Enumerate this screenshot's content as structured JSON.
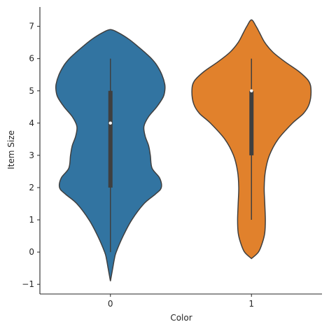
{
  "chart_data": {
    "type": "violin",
    "title": "",
    "xlabel": "Color",
    "ylabel": "Item Size",
    "categories": [
      "0",
      "1"
    ],
    "ylim": [
      -1.3,
      7.6
    ],
    "yticks": [
      -1,
      0,
      1,
      2,
      3,
      4,
      5,
      6,
      7
    ],
    "ytick_labels": [
      "−1",
      "0",
      "1",
      "2",
      "3",
      "4",
      "5",
      "6",
      "7"
    ],
    "grid": false,
    "violins": [
      {
        "category": "0",
        "color": "#3274a1",
        "kde_extent": [
          -0.9,
          6.9
        ],
        "density_profile": [
          [
            -0.9,
            0.0
          ],
          [
            -0.7,
            0.02
          ],
          [
            -0.5,
            0.04
          ],
          [
            -0.2,
            0.07
          ],
          [
            0.0,
            0.1
          ],
          [
            0.5,
            0.22
          ],
          [
            1.0,
            0.37
          ],
          [
            1.5,
            0.58
          ],
          [
            1.8,
            0.78
          ],
          [
            2.0,
            0.88
          ],
          [
            2.3,
            0.85
          ],
          [
            2.6,
            0.72
          ],
          [
            3.0,
            0.69
          ],
          [
            3.3,
            0.66
          ],
          [
            3.6,
            0.6
          ],
          [
            3.9,
            0.58
          ],
          [
            4.2,
            0.66
          ],
          [
            4.5,
            0.8
          ],
          [
            4.8,
            0.91
          ],
          [
            5.0,
            0.94
          ],
          [
            5.2,
            0.94
          ],
          [
            5.5,
            0.89
          ],
          [
            5.8,
            0.8
          ],
          [
            6.0,
            0.71
          ],
          [
            6.2,
            0.59
          ],
          [
            6.4,
            0.46
          ],
          [
            6.6,
            0.32
          ],
          [
            6.8,
            0.14
          ],
          [
            6.9,
            0.0
          ]
        ],
        "box": {
          "whisker_low": 0.0,
          "q1": 2.0,
          "median": 4.0,
          "q3": 5.0,
          "whisker_high": 6.0
        }
      },
      {
        "category": "1",
        "color": "#e1812c",
        "kde_extent": [
          -0.2,
          7.2
        ],
        "density_profile": [
          [
            -0.2,
            0.0
          ],
          [
            0.0,
            0.12
          ],
          [
            0.3,
            0.19
          ],
          [
            0.6,
            0.23
          ],
          [
            1.0,
            0.24
          ],
          [
            1.5,
            0.23
          ],
          [
            2.0,
            0.22
          ],
          [
            2.5,
            0.24
          ],
          [
            3.0,
            0.31
          ],
          [
            3.5,
            0.46
          ],
          [
            4.0,
            0.71
          ],
          [
            4.3,
            0.9
          ],
          [
            4.6,
            1.0
          ],
          [
            5.0,
            1.03
          ],
          [
            5.3,
            0.99
          ],
          [
            5.6,
            0.82
          ],
          [
            5.9,
            0.58
          ],
          [
            6.2,
            0.37
          ],
          [
            6.5,
            0.23
          ],
          [
            6.8,
            0.14
          ],
          [
            7.0,
            0.08
          ],
          [
            7.2,
            0.0
          ]
        ],
        "box": {
          "whisker_low": 1.0,
          "q1": 3.0,
          "median": 5.0,
          "q3": 5.0,
          "whisker_high": 6.0
        }
      }
    ]
  }
}
